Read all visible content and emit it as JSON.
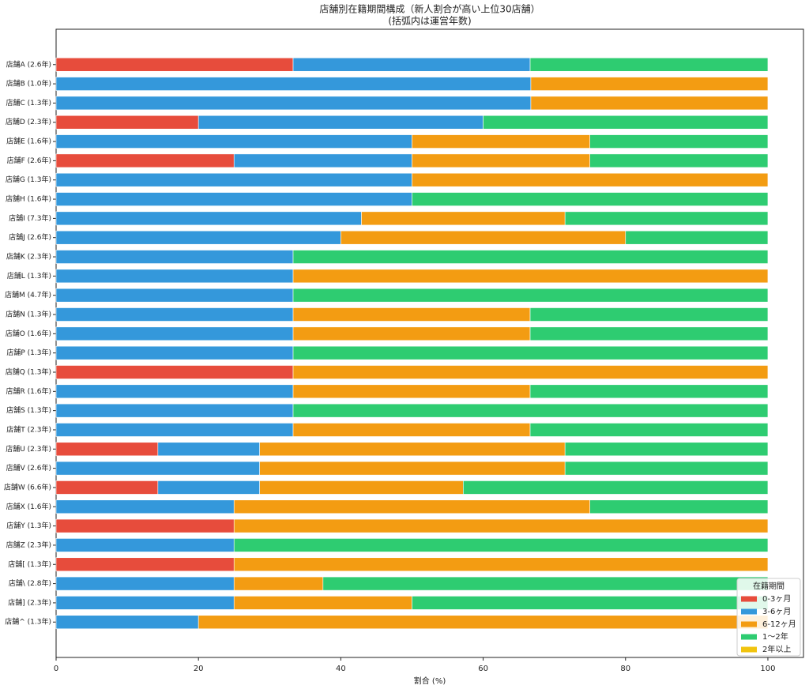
{
  "chart_data": {
    "type": "stacked_barh",
    "title": "店舗別在籍期間構成（新人割合が高い上位30店舗）",
    "subtitle": "(括弧内は運営年数)",
    "xlabel": "割合 (%)",
    "xlim": [
      0,
      105
    ],
    "xticks": [
      0,
      20,
      40,
      60,
      80,
      100
    ],
    "legend_title": "在籍期間",
    "legend_loc": "lower right",
    "categories": [
      "店舗A (2.6年)",
      "店舗B (1.0年)",
      "店舗C (1.3年)",
      "店舗D (2.3年)",
      "店舗E (1.6年)",
      "店舗F (2.6年)",
      "店舗G (1.3年)",
      "店舗H (1.6年)",
      "店舗I (7.3年)",
      "店舗J (2.6年)",
      "店舗K (2.3年)",
      "店舗L (1.3年)",
      "店舗M (4.7年)",
      "店舗N (1.3年)",
      "店舗O (1.6年)",
      "店舗P (1.3年)",
      "店舗Q (1.3年)",
      "店舗R (1.6年)",
      "店舗S (1.3年)",
      "店舗T (2.3年)",
      "店舗U (2.3年)",
      "店舗V (2.6年)",
      "店舗W (6.6年)",
      "店舗X (1.6年)",
      "店舗Y (1.3年)",
      "店舗Z (2.3年)",
      "店舗[ (1.3年)",
      "店舗\\ (2.8年)",
      "店舗] (2.3年)",
      "店舗^ (1.3年)"
    ],
    "series": [
      {
        "name": "0-3ヶ月",
        "color": "#e74c3c",
        "values": [
          33.3,
          0,
          0,
          20,
          0,
          25,
          0,
          0,
          0,
          0,
          0,
          0,
          0,
          0,
          0,
          0,
          33.3,
          0,
          0,
          0,
          14.3,
          0,
          14.3,
          0,
          25,
          0,
          25,
          0,
          0,
          0
        ]
      },
      {
        "name": "3-6ヶ月",
        "color": "#3498db",
        "values": [
          33.3,
          66.7,
          66.7,
          40,
          50,
          25,
          50,
          50,
          42.9,
          40,
          33.3,
          33.3,
          33.3,
          33.3,
          33.3,
          33.3,
          0,
          33.3,
          33.3,
          33.3,
          14.3,
          28.6,
          14.3,
          25,
          0,
          25,
          0,
          25,
          25,
          20
        ]
      },
      {
        "name": "6-12ヶ月",
        "color": "#f39c12",
        "values": [
          0,
          33.3,
          33.3,
          0,
          25,
          25,
          50,
          0,
          28.6,
          40,
          0,
          66.7,
          0,
          33.3,
          33.3,
          0,
          66.7,
          33.3,
          0,
          33.3,
          42.9,
          42.9,
          28.6,
          50,
          75,
          0,
          75,
          12.5,
          25,
          80
        ]
      },
      {
        "name": "1〜2年",
        "color": "#2ecc71",
        "values": [
          33.4,
          0,
          0,
          40,
          25,
          25,
          0,
          50,
          28.5,
          20,
          66.7,
          0,
          66.7,
          33.4,
          33.4,
          66.7,
          0,
          33.4,
          66.7,
          33.4,
          28.5,
          28.5,
          42.8,
          25,
          0,
          75,
          0,
          62.5,
          50,
          0
        ]
      },
      {
        "name": "2年以上",
        "color": "#f1c40f",
        "values": [
          0,
          0,
          0,
          0,
          0,
          0,
          0,
          0,
          0,
          0,
          0,
          0,
          0,
          0,
          0,
          0,
          0,
          0,
          0,
          0,
          0,
          0,
          0,
          0,
          0,
          0,
          0,
          0,
          0,
          0
        ]
      }
    ]
  }
}
